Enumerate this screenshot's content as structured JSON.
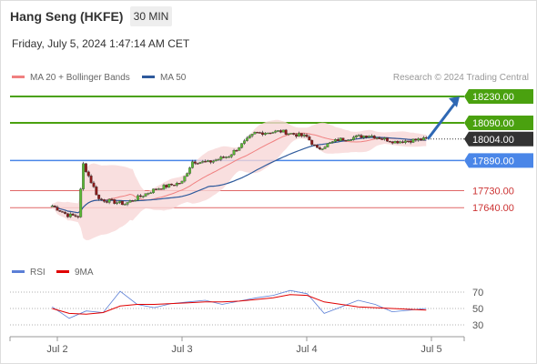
{
  "header": {
    "title": "Hang Seng (HKFE)",
    "timeframe": "30 MIN",
    "datetime": "Friday, July 5, 2024 1:47:14 AM CET",
    "credit": "Research © 2024 Trading Central"
  },
  "legend": {
    "ma20": {
      "label": "MA 20 + Bollinger Bands",
      "color": "#f08080"
    },
    "ma50": {
      "label": "MA 50",
      "color": "#2e5a9c"
    }
  },
  "rsi_legend": {
    "rsi": {
      "label": "RSI",
      "color": "#5b7fd6"
    },
    "ma9": {
      "label": "9MA",
      "color": "#e00000"
    }
  },
  "colors": {
    "up": "#5cb836",
    "down": "#8b1a1a",
    "target": "#4aa10f",
    "pivot": "#4a86e8",
    "support": "#e06666",
    "current": "#333333",
    "arrow": "#2f68b4",
    "band": "#f8d7d7"
  },
  "chart_data": {
    "type": "line",
    "title": "Hang Seng (HKFE)",
    "interval": "30 MIN",
    "x_ticks": [
      "Jul 2",
      "Jul 3",
      "Jul 4",
      "Jul 5"
    ],
    "y_range": [
      17550,
      18280
    ],
    "levels": [
      {
        "value": 18230,
        "label": "18230.00",
        "kind": "resistance"
      },
      {
        "value": 18090,
        "label": "18090.00",
        "kind": "resistance"
      },
      {
        "value": 18004,
        "label": "18004.00",
        "kind": "last"
      },
      {
        "value": 17890,
        "label": "17890.00",
        "kind": "pivot"
      },
      {
        "value": 17730,
        "label": "17730.00",
        "kind": "support"
      },
      {
        "value": 17640,
        "label": "17640.00",
        "kind": "support"
      }
    ],
    "price_series": [
      {
        "time": "Jul 1 23:00",
        "value": 17650
      },
      {
        "time": "Jul 2 02:00",
        "value": 17600
      },
      {
        "time": "Jul 2 04:00",
        "value": 17595
      },
      {
        "time": "Jul 2 05:00",
        "value": 17870
      },
      {
        "time": "Jul 2 08:00",
        "value": 17685
      },
      {
        "time": "Jul 2 13:00",
        "value": 17660
      },
      {
        "time": "Jul 2 19:00",
        "value": 17740
      },
      {
        "time": "Jul 3 00:00",
        "value": 17775
      },
      {
        "time": "Jul 3 02:00",
        "value": 17885
      },
      {
        "time": "Jul 3 05:00",
        "value": 17880
      },
      {
        "time": "Jul 3 09:00",
        "value": 17915
      },
      {
        "time": "Jul 3 14:00",
        "value": 18035
      },
      {
        "time": "Jul 3 19:00",
        "value": 18045
      },
      {
        "time": "Jul 4 00:00",
        "value": 18015
      },
      {
        "time": "Jul 4 02:00",
        "value": 17950
      },
      {
        "time": "Jul 4 06:00",
        "value": 18000
      },
      {
        "time": "Jul 4 12:00",
        "value": 18025
      },
      {
        "time": "Jul 4 17:00",
        "value": 17990
      },
      {
        "time": "Jul 4 23:00",
        "value": 18004
      }
    ],
    "rsi": {
      "levels": [
        70,
        50,
        30
      ],
      "series": [
        {
          "name": "RSI",
          "values": [
            52,
            38,
            47,
            45,
            71,
            55,
            51,
            56,
            58,
            60,
            55,
            59,
            63,
            66,
            72,
            68,
            44,
            52,
            60,
            55,
            46,
            48,
            50
          ]
        },
        {
          "name": "9MA",
          "values": [
            50,
            44,
            43,
            45,
            53,
            55,
            55,
            56,
            57,
            58,
            58,
            59,
            61,
            63,
            67,
            66,
            58,
            55,
            52,
            51,
            50,
            49,
            48
          ]
        }
      ]
    }
  }
}
